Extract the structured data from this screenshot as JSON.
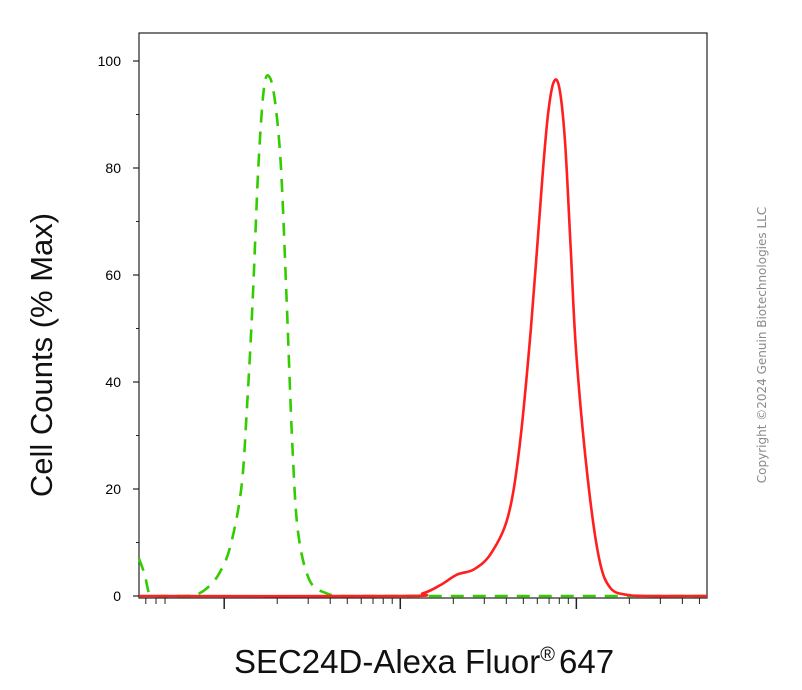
{
  "chart_data": {
    "type": "line",
    "title": "",
    "xlabel": "SEC24D-Alexa Fluor",
    "xlabel_mark": "®",
    "xlabel_suffix": "647",
    "ylabel": "Cell Counts (% Max)",
    "ylim": [
      0,
      105
    ],
    "xlim": [
      0,
      100
    ],
    "x_scale": "log (biexponential flow cytometry axis, decade tick labels not printed)",
    "yticks": [
      0,
      20,
      40,
      60,
      80,
      100
    ],
    "grid": false,
    "legend": "none",
    "series": [
      {
        "style": "dashed",
        "color": "#33cc00",
        "x": [
          0,
          1,
          2,
          4,
          8,
          10,
          12,
          14,
          16,
          18,
          19,
          20,
          21,
          22,
          23,
          24,
          25,
          26,
          27,
          28,
          30,
          33,
          36,
          40,
          50,
          60,
          70,
          80,
          90,
          100
        ],
        "y": [
          7,
          4,
          0,
          0,
          0,
          0.2,
          1.5,
          4,
          9,
          20,
          35,
          55,
          80,
          95,
          97,
          92,
          80,
          55,
          28,
          12,
          3,
          0.5,
          0,
          0,
          0,
          0,
          0,
          0,
          0,
          0
        ]
      },
      {
        "style": "solid",
        "color": "#ff1f1f",
        "x": [
          0,
          46,
          50,
          53,
          56,
          59,
          62,
          65,
          67,
          69,
          71,
          72,
          73,
          74,
          75,
          76,
          77,
          79,
          81,
          83,
          86,
          90,
          95,
          100
        ],
        "y": [
          0,
          0,
          0.5,
          2,
          4,
          5,
          8,
          15,
          28,
          50,
          78,
          90,
          96,
          95,
          85,
          65,
          45,
          22,
          7,
          1.5,
          0.2,
          0,
          0,
          0
        ]
      }
    ]
  },
  "copyright": "Copyright ©2024 Genuin Biotechnologies LLC"
}
